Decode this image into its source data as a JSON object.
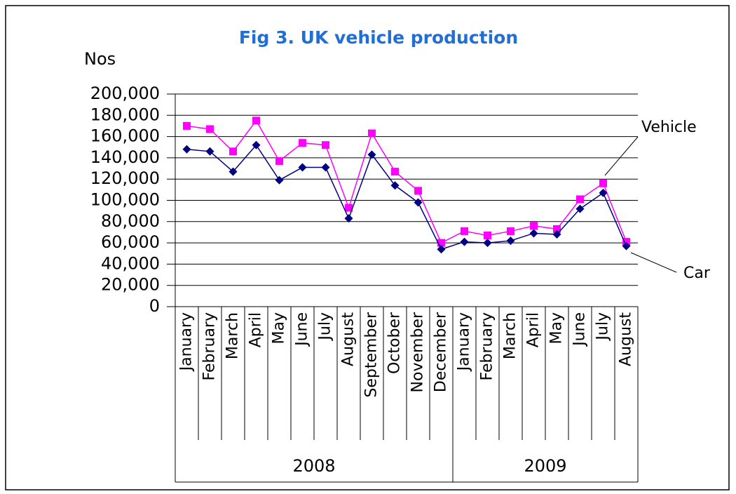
{
  "chart_data": {
    "type": "line",
    "title": "Fig 3. UK vehicle production",
    "y_label": "Nos",
    "groups": [
      {
        "label": "2008",
        "categories": [
          "January",
          "February",
          "March",
          "April",
          "May",
          "June",
          "July",
          "August",
          "September",
          "October",
          "November",
          "December"
        ]
      },
      {
        "label": "2009",
        "categories": [
          "January",
          "February",
          "March",
          "April",
          "May",
          "June",
          "July",
          "August"
        ]
      }
    ],
    "series": [
      {
        "name": "Vehicle",
        "color": "#ff00ff",
        "marker": "square",
        "values": [
          170000,
          167000,
          146000,
          175000,
          137000,
          154000,
          152000,
          93000,
          163000,
          127000,
          109000,
          60000,
          71000,
          67000,
          71000,
          76000,
          73000,
          101000,
          116000,
          61000
        ]
      },
      {
        "name": "Car",
        "color": "#000080",
        "marker": "diamond",
        "values": [
          148000,
          146000,
          127000,
          152000,
          119000,
          131000,
          131000,
          83000,
          143000,
          114000,
          98000,
          54000,
          61000,
          60000,
          62000,
          69000,
          68000,
          92000,
          107000,
          57000
        ]
      }
    ],
    "ylim": [
      0,
      200000
    ],
    "yticks": [
      0,
      {
        "value": 20000,
        "label": "20,000"
      },
      {
        "value": 40000,
        "label": "40,000"
      },
      {
        "value": 60000,
        "label": "60,000"
      },
      {
        "value": 80000,
        "label": "80,000"
      },
      {
        "value": 100000,
        "label": "100,000"
      },
      {
        "value": 120000,
        "label": "120,000"
      },
      {
        "value": 140000,
        "label": "140,000"
      },
      {
        "value": 160000,
        "label": "160,000"
      },
      {
        "value": 180000,
        "label": "180,000"
      },
      {
        "value": 200000,
        "label": "200,000"
      }
    ],
    "grid": true
  }
}
